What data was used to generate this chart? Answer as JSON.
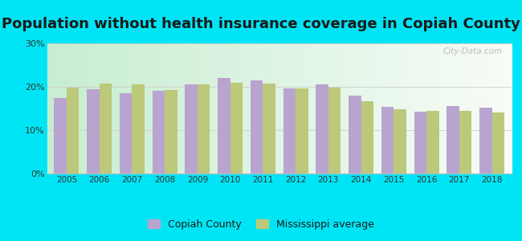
{
  "title": "Population without health insurance coverage in Copiah County",
  "years": [
    2005,
    2006,
    2007,
    2008,
    2009,
    2010,
    2011,
    2012,
    2013,
    2014,
    2015,
    2016,
    2017,
    2018
  ],
  "copiah_county": [
    17.5,
    19.5,
    18.5,
    19.0,
    20.5,
    22.0,
    21.5,
    19.7,
    20.5,
    18.0,
    15.3,
    14.2,
    15.5,
    15.2
  ],
  "mississippi_avg": [
    19.8,
    20.8,
    20.5,
    19.3,
    20.5,
    21.0,
    20.8,
    19.7,
    19.8,
    16.7,
    14.8,
    14.5,
    14.5,
    14.0
  ],
  "bar_color_copiah": "#b9a4d0",
  "bar_color_ms": "#bcc87a",
  "background_outer": "#00e5f5",
  "ylim": [
    0,
    30
  ],
  "yticks": [
    0,
    10,
    20,
    30
  ],
  "ytick_labels": [
    "0%",
    "10%",
    "20%",
    "30%"
  ],
  "legend_copiah": "Copiah County",
  "legend_ms": "Mississippi average",
  "title_fontsize": 13,
  "watermark": "City-Data.com"
}
